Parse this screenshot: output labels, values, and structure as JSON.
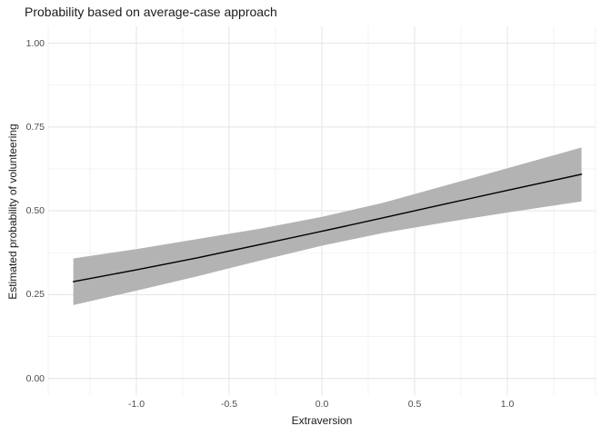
{
  "chart_data": {
    "type": "line",
    "title": "Probability based on average-case approach",
    "xlabel": "Extraversion",
    "ylabel": "Estimated probability of volunteering",
    "xlim": [
      -1.475,
      1.475
    ],
    "ylim": [
      -0.05,
      1.05
    ],
    "grid": "on",
    "legend_position": "none",
    "x_ticks": [
      -1.0,
      -0.5,
      0.0,
      0.5,
      1.0
    ],
    "x_tick_labels": [
      "-1.0",
      "-0.5",
      "0.0",
      "0.5",
      "1.0"
    ],
    "x_minor_breaks": [
      -1.475,
      -1.25,
      -0.75,
      -0.25,
      0.25,
      0.75,
      1.25,
      1.475
    ],
    "y_ticks": [
      0.0,
      0.25,
      0.5,
      0.75,
      1.0
    ],
    "y_tick_labels": [
      "0.00",
      "0.25",
      "0.50",
      "0.75",
      "1.00"
    ],
    "y_minor_breaks": [
      0.125,
      0.375,
      0.625,
      0.875
    ],
    "series": [
      {
        "name": "estimated-probability-line",
        "type": "line",
        "x": [
          -1.34,
          -1.0,
          -0.67,
          -0.33,
          0.0,
          0.33,
          0.67,
          1.0,
          1.4
        ],
        "y": [
          0.289,
          0.324,
          0.36,
          0.4,
          0.439,
          0.479,
          0.521,
          0.561,
          0.609
        ]
      }
    ],
    "ribbon": {
      "name": "confidence-interval-ribbon",
      "x": [
        -1.34,
        -1.0,
        -0.67,
        -0.33,
        0.0,
        0.33,
        0.67,
        1.0,
        1.4
      ],
      "lower": [
        0.219,
        0.262,
        0.305,
        0.352,
        0.396,
        0.434,
        0.466,
        0.495,
        0.528
      ],
      "upper": [
        0.358,
        0.386,
        0.416,
        0.447,
        0.482,
        0.524,
        0.576,
        0.627,
        0.689
      ]
    },
    "colors": {
      "line": "#000000",
      "ribbon": "#b3b3b3",
      "grid_major": "#e6e6e6",
      "grid_minor": "#f0f0f0",
      "axis_text": "#4d4d4d",
      "title_text": "#1b1b1b",
      "background": "#ffffff"
    }
  }
}
